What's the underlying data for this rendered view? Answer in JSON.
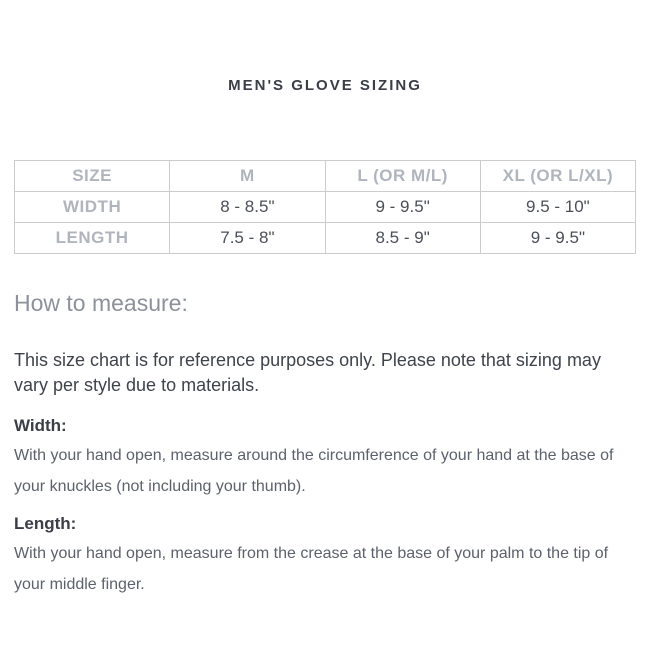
{
  "page_title": "MEN'S GLOVE SIZING",
  "size_table": {
    "columns": [
      "SIZE",
      "M",
      "L (OR M/L)",
      "XL (OR L/XL)"
    ],
    "rows": [
      {
        "label": "WIDTH",
        "values": [
          "8 - 8.5\"",
          "9 - 9.5\"",
          "9.5 - 10\""
        ]
      },
      {
        "label": "LENGTH",
        "values": [
          "7.5 - 8\"",
          "8.5 - 9\"",
          "9 - 9.5\""
        ]
      }
    ]
  },
  "how_to_measure": {
    "heading": "How to measure:",
    "disclaimer": "This size chart is for reference purposes only. Please note that sizing may vary per style due to materials.",
    "sections": [
      {
        "label": "Width:",
        "text": "With your hand open, measure around the circumference of your hand at the base of your knuckles (not including your thumb)."
      },
      {
        "label": "Length:",
        "text": "With your hand open, measure from the crease at the base of your palm to the tip of your middle finger."
      }
    ]
  },
  "colors": {
    "table_border": "#cccccc",
    "muted_label": "#b0b5bd",
    "table_value": "#4b4f57",
    "title_text": "#3b3e46",
    "heading_text": "#8c919a",
    "body_dark": "#3f434b",
    "body_gray": "#5c616b"
  }
}
